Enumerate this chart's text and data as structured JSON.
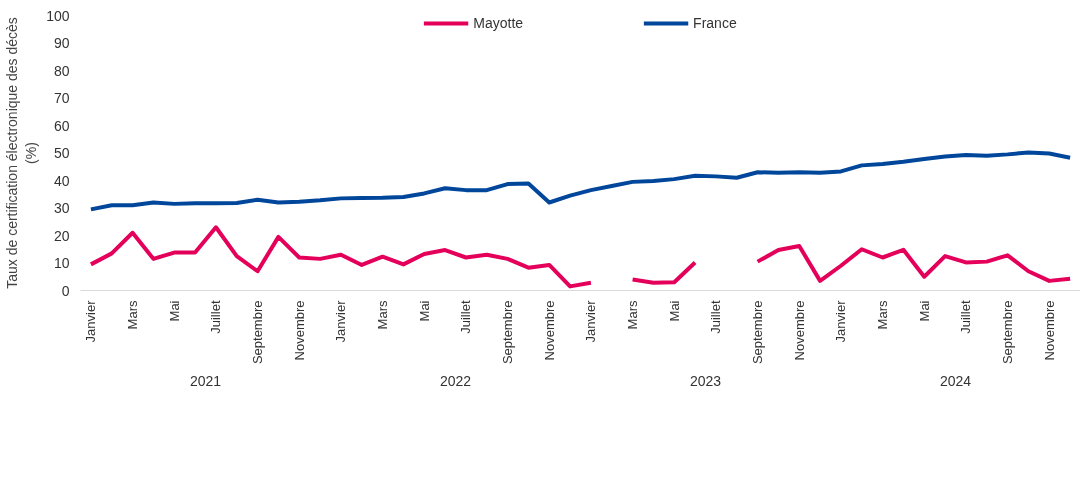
{
  "chart_data": {
    "type": "line",
    "ylabel": "Taux de certification électronique des décès (%)",
    "categories": [
      "Janvier",
      null,
      "Mars",
      null,
      "Mai",
      null,
      "Juillet",
      null,
      "Septembre",
      null,
      "Novembre",
      null,
      "Janvier",
      null,
      "Mars",
      null,
      "Mai",
      null,
      "Juillet",
      null,
      "Septembre",
      null,
      "Novembre",
      null,
      "Janvier",
      null,
      "Mars",
      null,
      "Mai",
      null,
      "Juillet",
      null,
      "Septembre",
      null,
      "Novembre",
      null,
      "Janvier",
      null,
      "Mars",
      null,
      "Mai",
      null,
      "Juillet",
      null,
      "Septembre",
      null,
      "Novembre",
      null
    ],
    "annotations": [
      "2021",
      "2022",
      "2023",
      "2024"
    ],
    "series": [
      {
        "name": "Mayotte",
        "color": "#e4005a",
        "values": [
          9.5,
          13.5,
          21,
          11.5,
          13.8,
          13.8,
          23,
          12.5,
          7,
          19.5,
          12,
          11.5,
          13,
          9.3,
          12.3,
          9.5,
          13.3,
          14.7,
          12,
          13,
          11.5,
          8.3,
          9.3,
          1.5,
          2.8,
          null,
          4,
          2.8,
          3,
          10.2,
          null,
          null,
          10.5,
          14.7,
          16.2,
          3.5,
          9,
          15,
          12,
          14.8,
          5,
          12.5,
          10.2,
          10.5,
          12.8,
          7,
          3.5,
          4.3
        ]
      },
      {
        "name": "France",
        "color": "#00479b",
        "values": [
          29.5,
          31,
          31,
          32,
          31.5,
          31.7,
          31.7,
          31.8,
          33,
          32,
          32.3,
          32.8,
          33.5,
          33.6,
          33.7,
          34,
          35.3,
          37.2,
          36.5,
          36.5,
          38.7,
          38.9,
          32,
          34.5,
          36.5,
          38,
          39.5,
          39.8,
          40.5,
          41.7,
          41.5,
          41,
          43,
          42.8,
          43,
          42.8,
          43.3,
          45.5,
          46,
          46.8,
          47.8,
          48.7,
          49.3,
          49,
          49.5,
          50.2,
          49.8,
          48.3
        ]
      }
    ],
    "ylim": [
      0,
      100
    ],
    "yticks": [
      0,
      10,
      20,
      30,
      40,
      50,
      60,
      70,
      80,
      90,
      100
    ],
    "grid": false,
    "legend": "top",
    "marker": "none",
    "line_style": "solid"
  }
}
